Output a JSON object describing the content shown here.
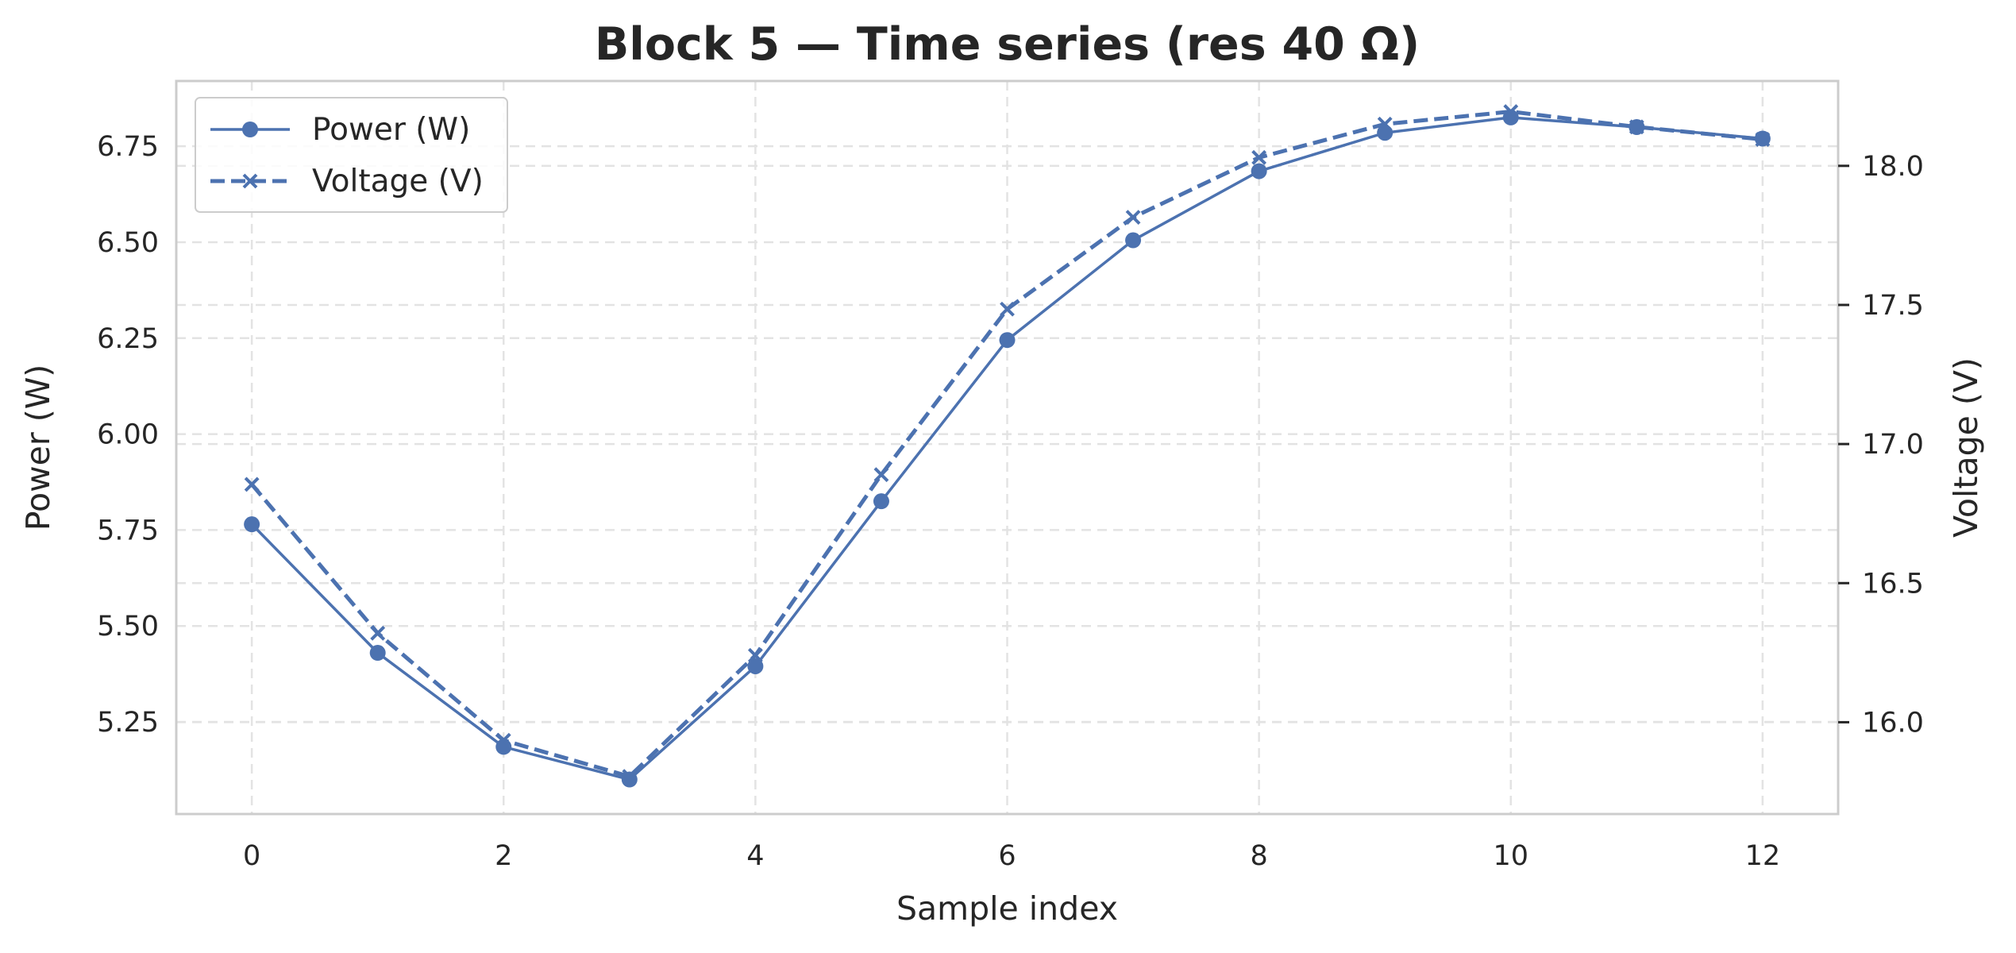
{
  "chart_data": {
    "type": "line",
    "title": "Block 5 — Time series (res 40 Ω)",
    "xlabel": "Sample index",
    "ylabel": "Power (W)",
    "y2label": "Voltage (V)",
    "x": [
      0,
      1,
      2,
      3,
      4,
      5,
      6,
      7,
      8,
      9,
      10,
      11,
      12
    ],
    "xlim": [
      -0.6,
      12.6
    ],
    "ylim": [
      5.01,
      6.92
    ],
    "y2lim": [
      15.67,
      18.305
    ],
    "xticks": [
      0,
      2,
      4,
      6,
      8,
      10,
      12
    ],
    "xtick_labels": [
      "0",
      "2",
      "4",
      "6",
      "8",
      "10",
      "12"
    ],
    "yticks": [
      5.25,
      5.5,
      5.75,
      6.0,
      6.25,
      6.5,
      6.75
    ],
    "ytick_labels": [
      "5.25",
      "5.50",
      "5.75",
      "6.00",
      "6.25",
      "6.50",
      "6.75"
    ],
    "y2ticks": [
      16.0,
      16.5,
      17.0,
      17.5,
      18.0
    ],
    "y2tick_labels": [
      "16.0",
      "16.5",
      "17.0",
      "17.5",
      "18.0"
    ],
    "grid": true,
    "legend_position": "top-left",
    "series": [
      {
        "name": "Power (W)",
        "axis": "left",
        "marker": "circle",
        "linestyle": "solid",
        "color": "#4c72b0",
        "values": [
          5.765,
          5.43,
          5.185,
          5.1,
          5.395,
          5.825,
          6.245,
          6.505,
          6.685,
          6.785,
          6.825,
          6.8,
          6.77
        ]
      },
      {
        "name": "Voltage (V)",
        "axis": "right",
        "marker": "x",
        "linestyle": "dashed",
        "color": "#4c72b0",
        "values": [
          16.855,
          16.32,
          15.935,
          15.805,
          16.24,
          16.89,
          17.485,
          17.815,
          18.03,
          18.15,
          18.195,
          18.14,
          18.095
        ]
      }
    ]
  }
}
